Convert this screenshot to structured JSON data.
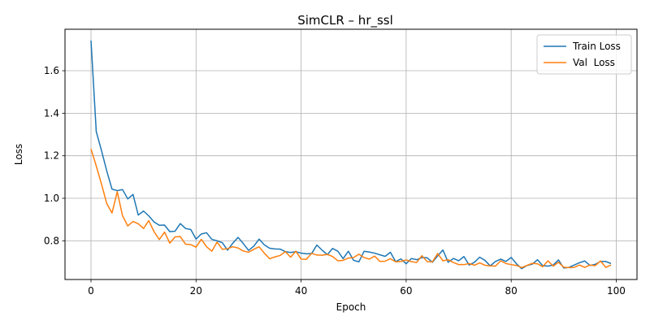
{
  "chart_data": {
    "type": "line",
    "title": "SimCLR – hr_ssl",
    "xlabel": "Epoch",
    "ylabel": "Loss",
    "xlim": [
      -4.95,
      103.95
    ],
    "ylim": [
      0.618,
      1.795
    ],
    "x_ticks": [
      0,
      20,
      40,
      60,
      80,
      100
    ],
    "y_ticks": [
      0.8,
      1.0,
      1.2,
      1.4,
      1.6
    ],
    "grid": true,
    "legend_position": "top-right",
    "series": [
      {
        "name": "Train Loss",
        "color": "#1f77b4",
        "values": [
          1.742,
          1.314,
          1.224,
          1.129,
          1.043,
          1.036,
          1.041,
          0.997,
          1.018,
          0.921,
          0.94,
          0.917,
          0.889,
          0.873,
          0.874,
          0.843,
          0.845,
          0.881,
          0.858,
          0.853,
          0.808,
          0.832,
          0.838,
          0.807,
          0.8,
          0.791,
          0.756,
          0.789,
          0.816,
          0.787,
          0.755,
          0.775,
          0.808,
          0.781,
          0.765,
          0.762,
          0.761,
          0.749,
          0.745,
          0.749,
          0.742,
          0.739,
          0.74,
          0.78,
          0.756,
          0.735,
          0.764,
          0.751,
          0.716,
          0.751,
          0.708,
          0.701,
          0.751,
          0.747,
          0.742,
          0.734,
          0.727,
          0.746,
          0.702,
          0.715,
          0.692,
          0.717,
          0.711,
          0.721,
          0.72,
          0.699,
          0.729,
          0.757,
          0.699,
          0.717,
          0.706,
          0.726,
          0.686,
          0.699,
          0.723,
          0.708,
          0.682,
          0.703,
          0.714,
          0.703,
          0.722,
          0.692,
          0.669,
          0.684,
          0.69,
          0.711,
          0.683,
          0.681,
          0.686,
          0.71,
          0.672,
          0.675,
          0.686,
          0.697,
          0.705,
          0.684,
          0.689,
          0.703,
          0.703,
          0.693
        ]
      },
      {
        "name": "Val  Loss",
        "color": "#ff7f0e",
        "values": [
          1.232,
          1.152,
          1.067,
          0.975,
          0.931,
          1.031,
          0.918,
          0.87,
          0.891,
          0.88,
          0.858,
          0.895,
          0.843,
          0.806,
          0.841,
          0.789,
          0.818,
          0.82,
          0.784,
          0.782,
          0.77,
          0.807,
          0.772,
          0.751,
          0.794,
          0.76,
          0.763,
          0.772,
          0.766,
          0.752,
          0.746,
          0.76,
          0.772,
          0.742,
          0.716,
          0.724,
          0.731,
          0.749,
          0.723,
          0.751,
          0.714,
          0.713,
          0.741,
          0.733,
          0.732,
          0.736,
          0.726,
          0.706,
          0.708,
          0.719,
          0.721,
          0.737,
          0.721,
          0.714,
          0.728,
          0.703,
          0.704,
          0.716,
          0.701,
          0.703,
          0.71,
          0.702,
          0.698,
          0.73,
          0.702,
          0.701,
          0.74,
          0.706,
          0.711,
          0.698,
          0.688,
          0.688,
          0.693,
          0.685,
          0.696,
          0.685,
          0.682,
          0.681,
          0.706,
          0.693,
          0.688,
          0.684,
          0.674,
          0.684,
          0.694,
          0.692,
          0.678,
          0.706,
          0.681,
          0.699,
          0.676,
          0.674,
          0.675,
          0.686,
          0.675,
          0.686,
          0.683,
          0.705,
          0.675,
          0.686
        ]
      }
    ]
  }
}
